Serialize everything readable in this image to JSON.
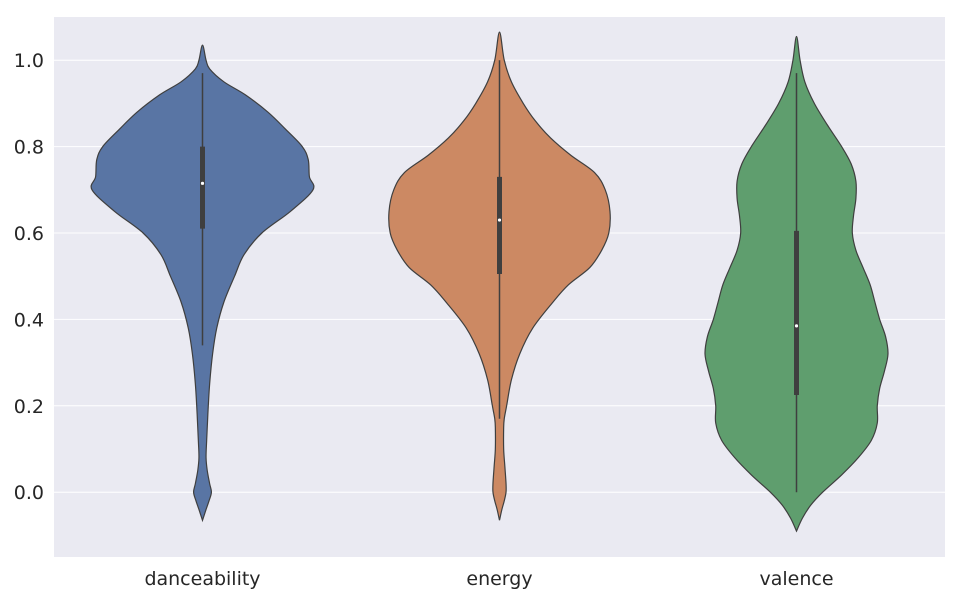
{
  "chart_data": {
    "type": "violin",
    "title": "",
    "xlabel": "",
    "ylabel": "",
    "ylim": [
      -0.15,
      1.1
    ],
    "yticks": [
      0.0,
      0.2,
      0.4,
      0.6,
      0.8,
      1.0
    ],
    "ytick_labels": [
      "0.0",
      "0.2",
      "0.4",
      "0.6",
      "0.8",
      "1.0"
    ],
    "grid": true,
    "background": "#eaeaf2",
    "categories": [
      "danceability",
      "energy",
      "valence"
    ],
    "violins": [
      {
        "label": "danceability",
        "color": "#5975a4",
        "box": {
          "whisker_low": 0.34,
          "q1": 0.61,
          "median": 0.715,
          "q3": 0.8,
          "whisker_high": 0.97
        },
        "profile": [
          [
            -0.065,
            0.0
          ],
          [
            -0.04,
            0.03
          ],
          [
            -0.02,
            0.055
          ],
          [
            0.0,
            0.075
          ],
          [
            0.02,
            0.06
          ],
          [
            0.05,
            0.04
          ],
          [
            0.08,
            0.03
          ],
          [
            0.12,
            0.035
          ],
          [
            0.18,
            0.045
          ],
          [
            0.25,
            0.06
          ],
          [
            0.32,
            0.085
          ],
          [
            0.38,
            0.12
          ],
          [
            0.44,
            0.18
          ],
          [
            0.5,
            0.27
          ],
          [
            0.55,
            0.35
          ],
          [
            0.6,
            0.5
          ],
          [
            0.65,
            0.74
          ],
          [
            0.7,
            0.93
          ],
          [
            0.73,
            0.9
          ],
          [
            0.77,
            0.89
          ],
          [
            0.8,
            0.84
          ],
          [
            0.84,
            0.7
          ],
          [
            0.88,
            0.55
          ],
          [
            0.92,
            0.36
          ],
          [
            0.95,
            0.18
          ],
          [
            0.98,
            0.06
          ],
          [
            1.0,
            0.03
          ],
          [
            1.035,
            0.0
          ]
        ]
      },
      {
        "label": "energy",
        "color": "#cc8963",
        "box": {
          "whisker_low": 0.17,
          "q1": 0.505,
          "median": 0.63,
          "q3": 0.73,
          "whisker_high": 1.0
        },
        "profile": [
          [
            -0.065,
            0.0
          ],
          [
            -0.04,
            0.02
          ],
          [
            -0.02,
            0.04
          ],
          [
            0.0,
            0.055
          ],
          [
            0.02,
            0.055
          ],
          [
            0.06,
            0.045
          ],
          [
            0.1,
            0.035
          ],
          [
            0.15,
            0.035
          ],
          [
            0.17,
            0.04
          ],
          [
            0.2,
            0.06
          ],
          [
            0.26,
            0.1
          ],
          [
            0.32,
            0.17
          ],
          [
            0.38,
            0.28
          ],
          [
            0.44,
            0.45
          ],
          [
            0.48,
            0.58
          ],
          [
            0.52,
            0.76
          ],
          [
            0.56,
            0.86
          ],
          [
            0.6,
            0.92
          ],
          [
            0.65,
            0.93
          ],
          [
            0.7,
            0.89
          ],
          [
            0.74,
            0.8
          ],
          [
            0.78,
            0.6
          ],
          [
            0.82,
            0.43
          ],
          [
            0.86,
            0.3
          ],
          [
            0.9,
            0.2
          ],
          [
            0.95,
            0.1
          ],
          [
            1.0,
            0.04
          ],
          [
            1.065,
            0.0
          ]
        ]
      },
      {
        "label": "valence",
        "color": "#5f9e6e",
        "box": {
          "whisker_low": 0.0,
          "q1": 0.225,
          "median": 0.385,
          "q3": 0.605,
          "whisker_high": 0.97
        },
        "profile": [
          [
            -0.09,
            0.0
          ],
          [
            -0.06,
            0.05
          ],
          [
            -0.03,
            0.12
          ],
          [
            0.0,
            0.22
          ],
          [
            0.04,
            0.38
          ],
          [
            0.08,
            0.52
          ],
          [
            0.12,
            0.63
          ],
          [
            0.16,
            0.68
          ],
          [
            0.2,
            0.68
          ],
          [
            0.24,
            0.7
          ],
          [
            0.28,
            0.74
          ],
          [
            0.32,
            0.77
          ],
          [
            0.36,
            0.75
          ],
          [
            0.4,
            0.7
          ],
          [
            0.44,
            0.66
          ],
          [
            0.48,
            0.62
          ],
          [
            0.52,
            0.56
          ],
          [
            0.56,
            0.5
          ],
          [
            0.6,
            0.47
          ],
          [
            0.64,
            0.48
          ],
          [
            0.68,
            0.5
          ],
          [
            0.72,
            0.5
          ],
          [
            0.76,
            0.46
          ],
          [
            0.8,
            0.38
          ],
          [
            0.85,
            0.26
          ],
          [
            0.9,
            0.15
          ],
          [
            0.95,
            0.07
          ],
          [
            1.0,
            0.03
          ],
          [
            1.055,
            0.0
          ]
        ]
      }
    ]
  }
}
